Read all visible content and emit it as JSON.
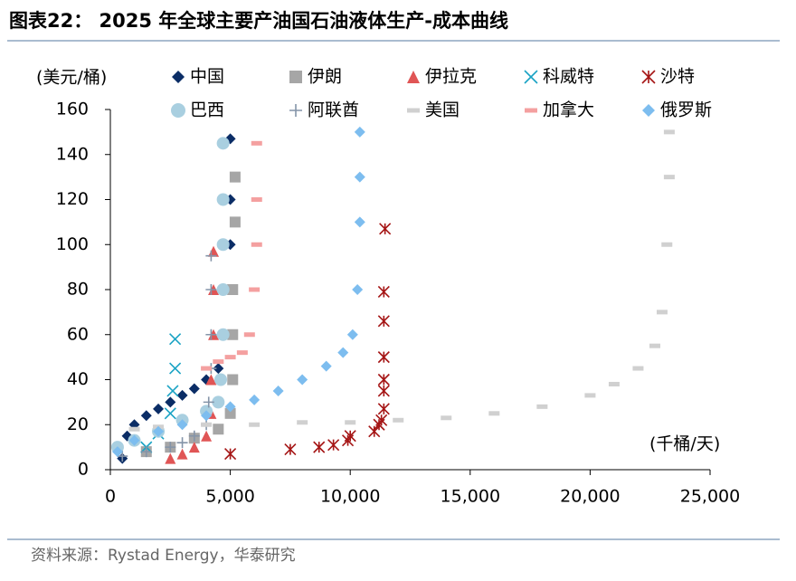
{
  "chart_data": {
    "type": "scatter",
    "title": "图表22： 2025 年全球主要产油国石油液体生产-成本曲线",
    "y_label": "(美元/桶)",
    "x_label": "(千桶/天)",
    "source": "资料来源：Rystad Energy，华泰研究",
    "xlim": [
      0,
      25000
    ],
    "ylim": [
      0,
      160
    ],
    "xticks": [
      0,
      {
        "value": 5000,
        "label": "5,000"
      },
      {
        "value": 10000,
        "label": "10,000"
      },
      {
        "value": 15000,
        "label": "15,000"
      },
      {
        "value": 20000,
        "label": "20,000"
      },
      {
        "value": 25000,
        "label": "25,000"
      }
    ],
    "yticks": [
      0,
      20,
      40,
      60,
      80,
      100,
      120,
      140,
      160
    ],
    "series": [
      {
        "name": "中国",
        "marker": "diamond",
        "color": "#0b2d66",
        "x": [
          500,
          700,
          1000,
          1500,
          2000,
          2500,
          3000,
          3500,
          4000,
          4500,
          4800,
          4900,
          5000,
          5000,
          5000
        ],
        "values": [
          5,
          15,
          20,
          24,
          27,
          30,
          33,
          36,
          40,
          45,
          60,
          80,
          100,
          120,
          147
        ]
      },
      {
        "name": "伊朗",
        "marker": "square",
        "color": "#a6a6a6",
        "x": [
          1500,
          2500,
          3500,
          4500,
          5000,
          5100,
          5100,
          5100,
          5200,
          5200
        ],
        "values": [
          8,
          10,
          14,
          18,
          25,
          40,
          60,
          80,
          110,
          130
        ]
      },
      {
        "name": "伊拉克",
        "marker": "triangle",
        "color": "#e05555",
        "x": [
          2500,
          3000,
          3500,
          4000,
          4200,
          4200,
          4300,
          4300,
          4300
        ],
        "values": [
          5,
          7,
          10,
          15,
          25,
          40,
          60,
          80,
          97
        ]
      },
      {
        "name": "科威特",
        "marker": "x",
        "color": "#1aa3c4",
        "x": [
          1500,
          2000,
          2500,
          2600,
          2700,
          2700
        ],
        "values": [
          10,
          16,
          25,
          35,
          45,
          58
        ]
      },
      {
        "name": "沙特",
        "marker": "star",
        "color": "#a51515",
        "x": [
          5000,
          7500,
          8700,
          9300,
          9900,
          10000,
          11000,
          11200,
          11300,
          11400,
          11400,
          11400,
          11400,
          11400,
          11400,
          11450
        ],
        "values": [
          7,
          9,
          10,
          11,
          13,
          15,
          17,
          20,
          22,
          27,
          35,
          40,
          50,
          66,
          79,
          107
        ]
      },
      {
        "name": "巴西",
        "marker": "circle",
        "color": "#a9cfe0",
        "x": [
          300,
          1000,
          2000,
          3000,
          4000,
          4500,
          4600,
          4700,
          4700,
          4700,
          4700,
          4700
        ],
        "values": [
          10,
          13,
          17,
          22,
          26,
          30,
          40,
          60,
          80,
          100,
          120,
          145
        ]
      },
      {
        "name": "阿联酋",
        "marker": "plus",
        "color": "#8494a8",
        "x": [
          500,
          1500,
          2500,
          3000,
          3500,
          4000,
          4100,
          4200,
          4200,
          4200,
          4200
        ],
        "values": [
          6,
          8,
          10,
          12,
          15,
          20,
          30,
          45,
          60,
          80,
          95
        ]
      },
      {
        "name": "美国",
        "marker": "dash",
        "color": "#d0d0d0",
        "x": [
          1000,
          2000,
          4000,
          6000,
          8000,
          10000,
          12000,
          14000,
          16000,
          18000,
          20000,
          21000,
          22000,
          22700,
          23000,
          23200,
          23300,
          23300
        ],
        "values": [
          18,
          19,
          20,
          20,
          21,
          21,
          22,
          23,
          25,
          28,
          33,
          38,
          45,
          55,
          70,
          100,
          130,
          150
        ]
      },
      {
        "name": "加拿大",
        "marker": "dash",
        "color": "#f4a0a0",
        "x": [
          4000,
          4500,
          5000,
          5500,
          5800,
          6000,
          6100,
          6100,
          6100
        ],
        "values": [
          45,
          48,
          50,
          52,
          60,
          80,
          100,
          120,
          145
        ]
      },
      {
        "name": "俄罗斯",
        "marker": "diamond",
        "color": "#7dbdef",
        "x": [
          300,
          1000,
          2000,
          3000,
          4000,
          5000,
          6000,
          7000,
          8000,
          9000,
          9700,
          10100,
          10300,
          10400,
          10400,
          10400
        ],
        "values": [
          8,
          13,
          17,
          20,
          24,
          28,
          31,
          35,
          40,
          46,
          52,
          60,
          80,
          110,
          130,
          150
        ]
      }
    ]
  }
}
